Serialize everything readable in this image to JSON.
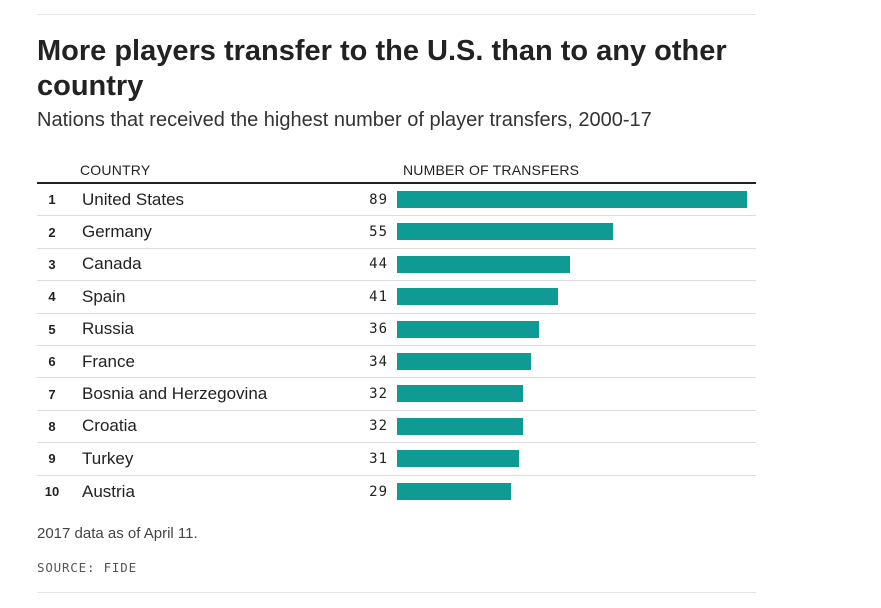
{
  "header": {
    "title": "More players transfer to the U.S. than to any other country",
    "subtitle": "Nations that received the highest number of player transfers, 2000-17"
  },
  "columns": {
    "country": "COUNTRY",
    "value": "NUMBER OF TRANSFERS"
  },
  "chart_data": {
    "type": "bar",
    "orientation": "horizontal",
    "title": "More players transfer to the U.S. than to any other country",
    "subtitle": "Nations that received the highest number of player transfers, 2000-17",
    "xlabel": "NUMBER OF TRANSFERS",
    "ylabel": "COUNTRY",
    "ranks": [
      "1",
      "2",
      "3",
      "4",
      "5",
      "6",
      "7",
      "8",
      "9",
      "10"
    ],
    "categories": [
      "United States",
      "Germany",
      "Canada",
      "Spain",
      "Russia",
      "France",
      "Bosnia and Herzegovina",
      "Croatia",
      "Turkey",
      "Austria"
    ],
    "values": [
      89,
      55,
      44,
      41,
      36,
      34,
      32,
      32,
      31,
      29
    ],
    "xlim": [
      0,
      89
    ],
    "bar_color": "#0f9a94",
    "grid": false,
    "legend": "none"
  },
  "footer": {
    "note": "2017 data as of April 11.",
    "source": "SOURCE: FIDE"
  }
}
